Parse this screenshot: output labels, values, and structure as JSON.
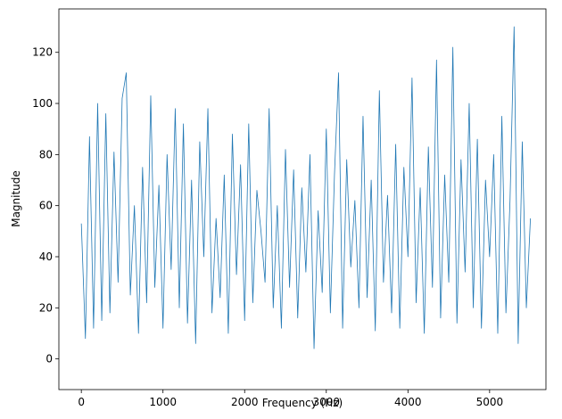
{
  "chart_data": {
    "type": "line",
    "xlabel": "Frequency (Hz)",
    "ylabel": "Magnitude",
    "x": [
      0,
      50,
      100,
      150,
      200,
      250,
      300,
      350,
      400,
      450,
      500,
      550,
      600,
      650,
      700,
      750,
      800,
      850,
      900,
      950,
      1000,
      1050,
      1100,
      1150,
      1200,
      1250,
      1300,
      1350,
      1400,
      1450,
      1500,
      1550,
      1600,
      1650,
      1700,
      1750,
      1800,
      1850,
      1900,
      1950,
      2000,
      2050,
      2100,
      2150,
      2200,
      2250,
      2300,
      2350,
      2400,
      2450,
      2500,
      2550,
      2600,
      2650,
      2700,
      2750,
      2800,
      2850,
      2900,
      2950,
      3000,
      3050,
      3100,
      3150,
      3200,
      3250,
      3300,
      3350,
      3400,
      3450,
      3500,
      3550,
      3600,
      3650,
      3700,
      3750,
      3800,
      3850,
      3900,
      3950,
      4000,
      4050,
      4100,
      4150,
      4200,
      4250,
      4300,
      4350,
      4400,
      4450,
      4500,
      4550,
      4600,
      4650,
      4700,
      4750,
      4800,
      4850,
      4900,
      4950,
      5000,
      5050,
      5100,
      5150,
      5200,
      5250,
      5300,
      5350,
      5400,
      5450,
      5500
    ],
    "series": [
      {
        "color": "#1f77b4",
        "values": [
          53,
          8,
          87,
          12,
          100,
          15,
          96,
          18,
          81,
          30,
          102,
          112,
          25,
          60,
          10,
          75,
          22,
          103,
          28,
          68,
          12,
          80,
          35,
          98,
          20,
          92,
          14,
          70,
          6,
          85,
          40,
          98,
          18,
          55,
          24,
          72,
          10,
          88,
          33,
          76,
          15,
          92,
          22,
          66,
          50,
          30,
          98,
          20,
          60,
          12,
          82,
          28,
          74,
          16,
          67,
          34,
          80,
          4,
          58,
          26,
          90,
          18,
          72,
          112,
          12,
          78,
          36,
          62,
          20,
          95,
          24,
          70,
          11,
          105,
          30,
          64,
          18,
          84,
          12,
          75,
          40,
          110,
          22,
          67,
          10,
          83,
          28,
          117,
          16,
          72,
          30,
          122,
          14,
          78,
          34,
          100,
          20,
          86,
          12,
          70,
          40,
          80,
          10,
          95,
          18,
          62,
          130,
          6,
          85,
          20,
          55
        ]
      }
    ],
    "xlim": [
      -275,
      5690
    ],
    "ylim": [
      -12,
      137
    ],
    "xticks": [
      0,
      1000,
      2000,
      3000,
      4000,
      5000
    ],
    "yticks": [
      0,
      20,
      40,
      60,
      80,
      100,
      120
    ],
    "grid": false
  }
}
